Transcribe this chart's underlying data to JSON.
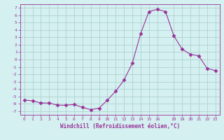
{
  "x": [
    0,
    1,
    2,
    3,
    4,
    5,
    6,
    7,
    8,
    9,
    10,
    11,
    12,
    13,
    14,
    15,
    16,
    17,
    18,
    19,
    20,
    21,
    22,
    23
  ],
  "y": [
    -5.5,
    -5.6,
    -5.9,
    -5.9,
    -6.2,
    -6.2,
    -6.1,
    -6.5,
    -6.8,
    -6.6,
    -5.5,
    -4.3,
    -2.8,
    -0.5,
    3.5,
    6.5,
    6.8,
    6.5,
    3.2,
    1.4,
    0.7,
    0.5,
    -1.2,
    -1.5
  ],
  "xlabel": "Windchill (Refroidissement éolien,°C)",
  "xticks": [
    0,
    1,
    2,
    3,
    4,
    5,
    6,
    7,
    8,
    9,
    10,
    11,
    12,
    13,
    14,
    15,
    16,
    18,
    19,
    20,
    21,
    22,
    23
  ],
  "xtick_labels": [
    "0",
    "1",
    "2",
    "3",
    "4",
    "5",
    "6",
    "7",
    "8",
    "9",
    "10",
    "11",
    "12",
    "13",
    "14",
    "15",
    "16",
    "18",
    "19",
    "20",
    "21",
    "22",
    "23"
  ],
  "yticks": [
    -7,
    -6,
    -5,
    -4,
    -3,
    -2,
    -1,
    0,
    1,
    2,
    3,
    4,
    5,
    6,
    7
  ],
  "ylim": [
    -7.5,
    7.5
  ],
  "xlim": [
    -0.5,
    23.5
  ],
  "line_color": "#993399",
  "marker": "D",
  "marker_size": 2.5,
  "bg_color": "#d4f0f0",
  "grid_color": "#aacccc",
  "axis_color": "#993399",
  "tick_color": "#993399",
  "label_color": "#993399"
}
